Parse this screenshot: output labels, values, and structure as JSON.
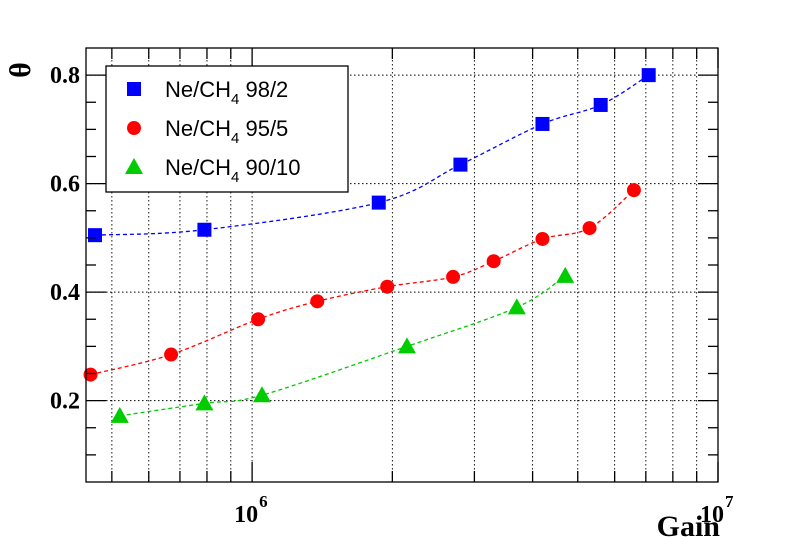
{
  "chart_data": {
    "type": "scatter",
    "title": "",
    "xlabel": "Gain",
    "ylabel": "θ",
    "x_scale": "log",
    "xlim": [
      440000,
      10000000
    ],
    "ylim": [
      0.05,
      0.85
    ],
    "x_tick_labels": [
      {
        "value": 1000000,
        "base": "10",
        "exp": "6"
      },
      {
        "value": 10000000,
        "base": "10",
        "exp": "7"
      }
    ],
    "y_ticks": [
      0.2,
      0.4,
      0.6,
      0.8
    ],
    "y_tick_labels": [
      "0.2",
      "0.4",
      "0.6",
      "0.8"
    ],
    "grid": true,
    "legend_position": "top-left",
    "series": [
      {
        "label_main": "Ne/CH",
        "label_sub": "4",
        "label_tail": " 98/2",
        "marker": "square",
        "color": "#0000ff",
        "x": [
          460000,
          790000,
          1870000,
          2800000,
          4200000,
          5600000,
          7100000
        ],
        "y": [
          0.505,
          0.515,
          0.565,
          0.635,
          0.71,
          0.745,
          0.8
        ]
      },
      {
        "label_main": "Ne/CH",
        "label_sub": "4",
        "label_tail": " 95/5",
        "marker": "circle",
        "color": "#ff0000",
        "x": [
          450000,
          670000,
          1030000,
          1380000,
          1950000,
          2700000,
          3300000,
          4200000,
          5300000,
          6600000
        ],
        "y": [
          0.248,
          0.285,
          0.35,
          0.383,
          0.41,
          0.428,
          0.457,
          0.498,
          0.518,
          0.588
        ]
      },
      {
        "label_main": "Ne/CH",
        "label_sub": "4",
        "label_tail": " 90/10",
        "marker": "triangle",
        "color": "#00cc00",
        "x": [
          520000,
          790000,
          1050000,
          2150000,
          3700000,
          4700000
        ],
        "y": [
          0.172,
          0.195,
          0.21,
          0.3,
          0.372,
          0.43
        ]
      }
    ]
  }
}
